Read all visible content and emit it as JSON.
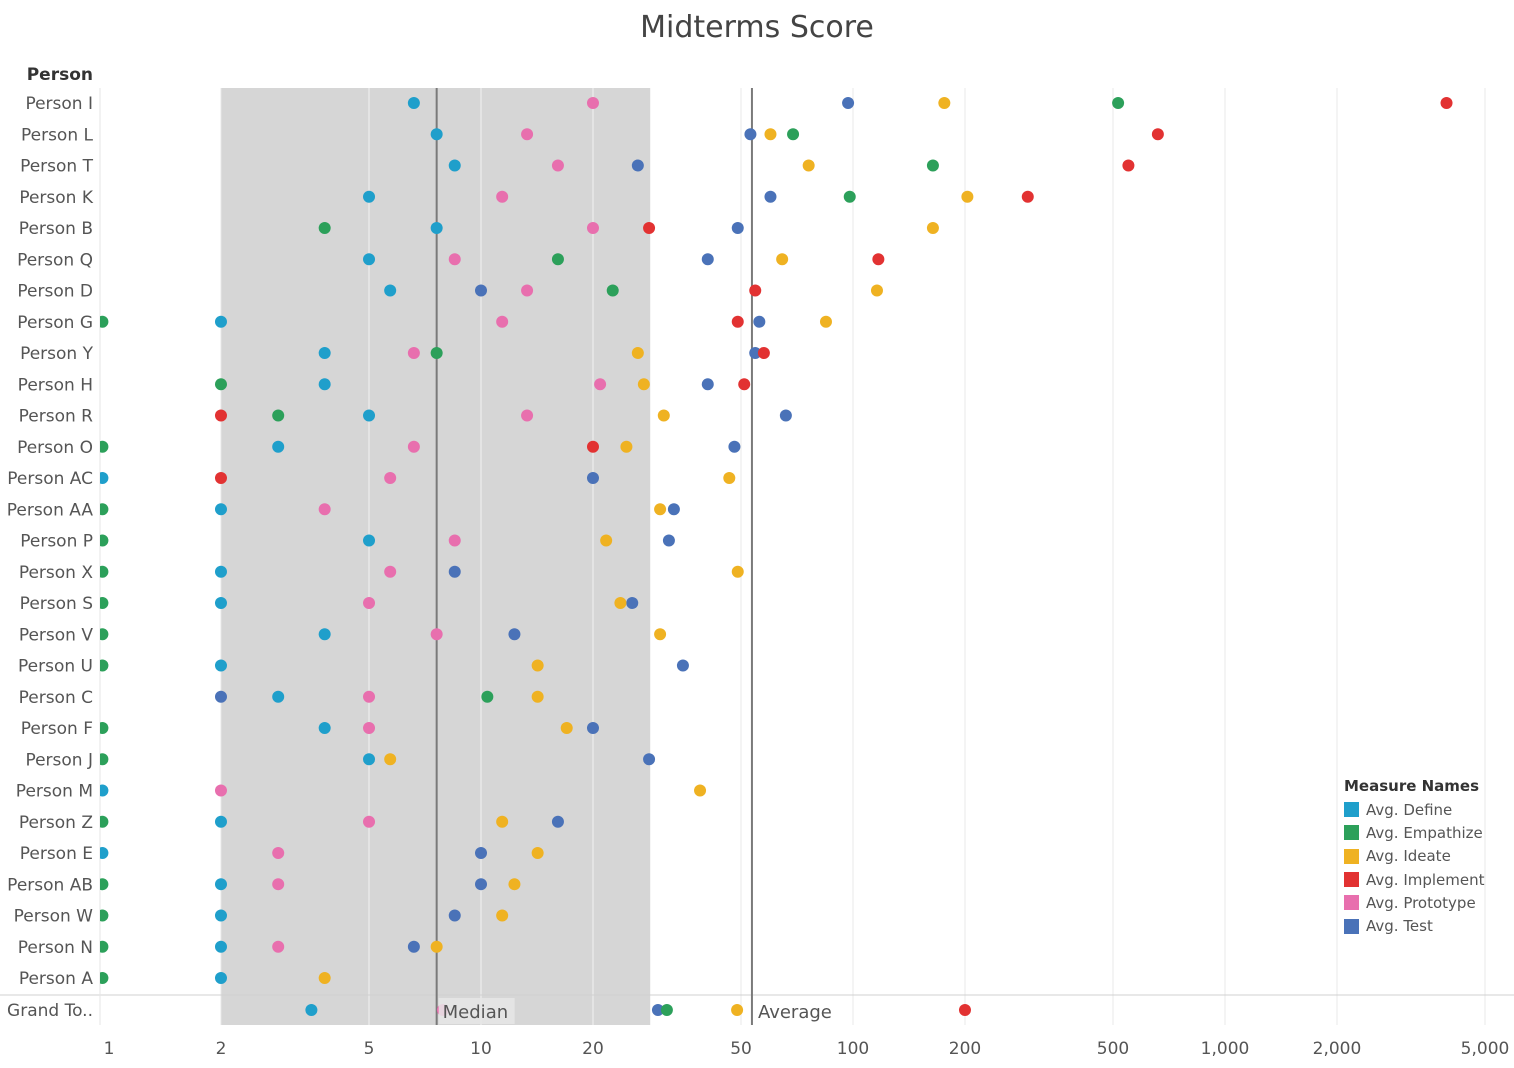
{
  "chart_data": {
    "type": "scatter",
    "title": "Midterms Score",
    "ylabel": "Person",
    "xscale": "log",
    "xlim": [
      0.95,
      6000
    ],
    "xticks": [
      1,
      2,
      5,
      10,
      20,
      50,
      100,
      200,
      500,
      1000,
      2000,
      5000
    ],
    "xtick_labels": [
      "1",
      "2",
      "5",
      "10",
      "20",
      "50",
      "100",
      "200",
      "500",
      "1,000",
      "2,000",
      "5,000"
    ],
    "reference_lines": [
      {
        "label": "Median",
        "value": 7.6
      },
      {
        "label": "Average",
        "value": 53.5
      }
    ],
    "reference_band": [
      2,
      28.5
    ],
    "legend": {
      "title": "Measure Names",
      "position": "bottom-right",
      "items": [
        {
          "key": "define",
          "label": "Avg. Define",
          "color": "#1f9fcb"
        },
        {
          "key": "empathize",
          "label": "Avg. Empathize",
          "color": "#2ca05a"
        },
        {
          "key": "ideate",
          "label": "Avg. Ideate",
          "color": "#efb222"
        },
        {
          "key": "implement",
          "label": "Avg. Implement",
          "color": "#e23232"
        },
        {
          "key": "prototype",
          "label": "Avg. Prototype",
          "color": "#e86fae"
        },
        {
          "key": "test",
          "label": "Avg. Test",
          "color": "#4a72b8"
        }
      ]
    },
    "rows": [
      {
        "name": "Person I",
        "values": {
          "define": 6.6,
          "prototype": 20,
          "test": 97,
          "ideate": 176,
          "empathize": 516,
          "implement": 3940
        }
      },
      {
        "name": "Person L",
        "values": {
          "define": 7.6,
          "prototype": 13.3,
          "test": 53,
          "ideate": 60,
          "empathize": 69,
          "implement": 660
        }
      },
      {
        "name": "Person T",
        "values": {
          "define": 8.5,
          "prototype": 16.1,
          "test": 26.4,
          "ideate": 76,
          "empathize": 164,
          "implement": 550
        }
      },
      {
        "name": "Person K",
        "values": {
          "define": 5,
          "prototype": 11.4,
          "test": 60,
          "empathize": 98,
          "ideate": 203,
          "implement": 295
        }
      },
      {
        "name": "Person B",
        "values": {
          "empathize": 3.8,
          "define": 7.6,
          "prototype": 20,
          "implement": 28.3,
          "test": 49,
          "ideate": 164
        }
      },
      {
        "name": "Person Q",
        "values": {
          "define": 5,
          "prototype": 8.5,
          "empathize": 16.1,
          "test": 40.7,
          "ideate": 64.5,
          "implement": 117
        }
      },
      {
        "name": "Person D",
        "values": {
          "define": 5.7,
          "test": 10,
          "prototype": 13.3,
          "empathize": 22.6,
          "implement": 54.6,
          "ideate": 116
        }
      },
      {
        "name": "Person G",
        "values": {
          "empathize": 0.96,
          "define": 2,
          "prototype": 11.4,
          "implement": 49,
          "test": 56,
          "ideate": 84.6
        }
      },
      {
        "name": "Person Y",
        "values": {
          "define": 3.8,
          "prototype": 6.6,
          "empathize": 7.6,
          "ideate": 26.4,
          "test": 54.6,
          "implement": 57.6
        }
      },
      {
        "name": "Person H",
        "values": {
          "empathize": 2,
          "define": 3.8,
          "prototype": 20.9,
          "ideate": 27.4,
          "test": 40.7,
          "implement": 51
        }
      },
      {
        "name": "Person R",
        "values": {
          "implement": 2,
          "empathize": 2.85,
          "define": 5,
          "prototype": 13.3,
          "ideate": 31,
          "test": 66
        }
      },
      {
        "name": "Person O",
        "values": {
          "empathize": 0.96,
          "define": 2.85,
          "prototype": 6.6,
          "implement": 20,
          "ideate": 24.6,
          "test": 48
        }
      },
      {
        "name": "Person AC",
        "values": {
          "define": 0.96,
          "implement": 2,
          "prototype": 5.7,
          "test": 20,
          "ideate": 46.5
        }
      },
      {
        "name": "Person AA",
        "values": {
          "empathize": 0.96,
          "define": 2,
          "prototype": 3.8,
          "ideate": 30.3,
          "test": 33
        }
      },
      {
        "name": "Person P",
        "values": {
          "empathize": 0.96,
          "define": 5,
          "prototype": 8.5,
          "ideate": 21.7,
          "test": 32
        }
      },
      {
        "name": "Person X",
        "values": {
          "empathize": 0.96,
          "define": 2,
          "prototype": 5.7,
          "test": 8.5,
          "ideate": 49
        }
      },
      {
        "name": "Person S",
        "values": {
          "empathize": 0.96,
          "define": 2,
          "prototype": 5,
          "ideate": 23.7,
          "test": 25.5
        }
      },
      {
        "name": "Person V",
        "values": {
          "empathize": 0.96,
          "define": 3.8,
          "prototype": 7.6,
          "test": 12.3,
          "ideate": 30.3
        }
      },
      {
        "name": "Person U",
        "values": {
          "empathize": 0.96,
          "define": 2,
          "ideate": 14.2,
          "test": 34.9
        }
      },
      {
        "name": "Person C",
        "values": {
          "test": 2,
          "define": 2.85,
          "prototype": 5,
          "empathize": 10.4,
          "ideate": 14.2
        }
      },
      {
        "name": "Person F",
        "values": {
          "empathize": 0.96,
          "define": 3.8,
          "prototype": 5,
          "ideate": 17,
          "test": 20
        }
      },
      {
        "name": "Person J",
        "values": {
          "empathize": 0.96,
          "define": 5,
          "ideate": 5.7,
          "test": 28.3
        }
      },
      {
        "name": "Person M",
        "values": {
          "define": 0.96,
          "prototype": 2,
          "ideate": 38.8
        }
      },
      {
        "name": "Person Z",
        "values": {
          "empathize": 0.96,
          "define": 2,
          "prototype": 5,
          "ideate": 11.4,
          "test": 16.1
        }
      },
      {
        "name": "Person E",
        "values": {
          "define": 0.96,
          "prototype": 2.85,
          "test": 10,
          "ideate": 14.2
        }
      },
      {
        "name": "Person AB",
        "values": {
          "empathize": 0.96,
          "define": 2,
          "prototype": 2.85,
          "test": 10,
          "ideate": 12.3
        }
      },
      {
        "name": "Person W",
        "values": {
          "empathize": 0.96,
          "define": 2,
          "test": 8.5,
          "ideate": 11.4
        }
      },
      {
        "name": "Person N",
        "values": {
          "empathize": 0.96,
          "define": 2,
          "prototype": 2.85,
          "test": 6.6,
          "ideate": 7.6
        }
      },
      {
        "name": "Person A",
        "values": {
          "empathize": 0.96,
          "define": 2,
          "ideate": 3.8
        }
      }
    ],
    "grand_total": {
      "name": "Grand To..",
      "values": {
        "define": 3.5,
        "prototype": 7.9,
        "test": 29.9,
        "empathize": 31.6,
        "ideate": 48.8,
        "implement": 200
      }
    }
  }
}
